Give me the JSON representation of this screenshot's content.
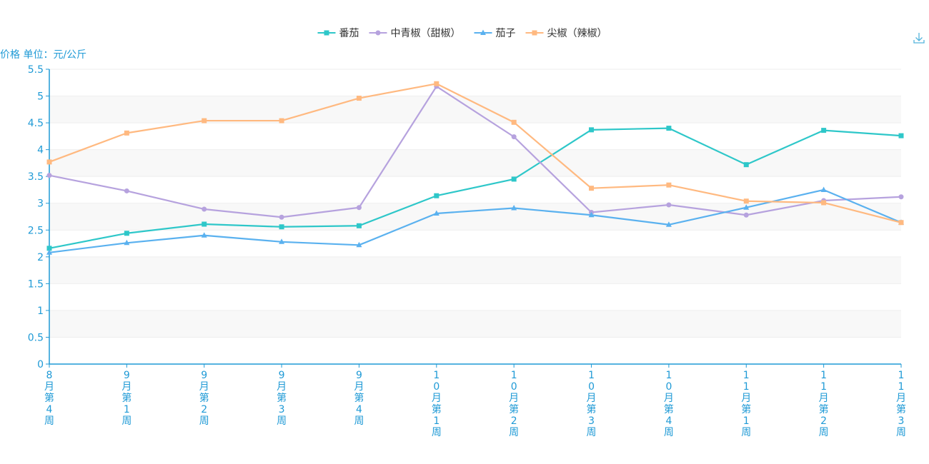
{
  "chart_data": {
    "type": "line",
    "title": "",
    "ylabel": "价格 单位：元/公斤",
    "xlabel": "",
    "ylim": [
      0,
      5.5
    ],
    "yticks": [
      0,
      0.5,
      1,
      1.5,
      2,
      2.5,
      3,
      3.5,
      4,
      4.5,
      5,
      5.5
    ],
    "ytick_labels": [
      "0",
      "0.5",
      "1",
      "1.5",
      "2",
      "2.5",
      "3",
      "3.5",
      "4",
      "4.5",
      "5",
      "5.5"
    ],
    "categories": [
      "8月第4周",
      "9月第1周",
      "9月第2周",
      "9月第3周",
      "9月第4周",
      "10月第1周",
      "10月第2周",
      "10月第3周",
      "10月第4周",
      "11月第1周",
      "11月第2周",
      "11月第3周"
    ],
    "legend_position": "top-center",
    "series": [
      {
        "name": "番茄",
        "color": "#2ec7c9",
        "marker": "square",
        "values": [
          2.16,
          2.44,
          2.61,
          2.56,
          2.58,
          3.14,
          3.45,
          4.37,
          4.4,
          3.72,
          4.36,
          4.26
        ]
      },
      {
        "name": "中青椒（甜椒）",
        "color": "#b6a2de",
        "marker": "circle",
        "values": [
          3.52,
          3.23,
          2.89,
          2.74,
          2.92,
          5.18,
          4.24,
          2.83,
          2.97,
          2.78,
          3.05,
          3.12
        ]
      },
      {
        "name": "茄子",
        "color": "#5ab1ef",
        "marker": "triangle",
        "values": [
          2.08,
          2.26,
          2.4,
          2.28,
          2.22,
          2.81,
          2.91,
          2.78,
          2.6,
          2.92,
          3.25,
          2.64
        ]
      },
      {
        "name": "尖椒（辣椒）",
        "color": "#ffb980",
        "marker": "square",
        "values": [
          3.77,
          4.31,
          4.54,
          4.54,
          4.96,
          5.23,
          4.51,
          3.28,
          3.34,
          3.04,
          3.01,
          2.64
        ]
      }
    ]
  },
  "toolbox": {
    "download_icon": "download-icon"
  },
  "colors": {
    "axis": "#1f9ad6",
    "band_light": "#f8f8f8",
    "band_white": "#ffffff",
    "gridline": "#eeeeee"
  }
}
